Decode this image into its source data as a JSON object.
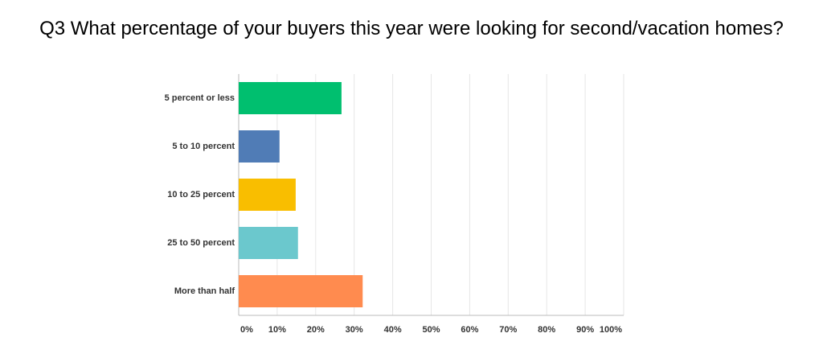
{
  "chart_data": {
    "type": "bar",
    "orientation": "horizontal",
    "title": "Q3 What percentage of your buyers this year were looking for second/vacation homes?",
    "categories": [
      "5 percent or less",
      "5 to 10 percent",
      "10 to 25 percent",
      "25 to 50 percent",
      "More than half"
    ],
    "values": [
      26.7,
      10.6,
      14.8,
      15.4,
      32.2
    ],
    "colors": [
      "#00bf6f",
      "#507cb6",
      "#f9be00",
      "#6bc8cd",
      "#ff8b4f"
    ],
    "xlim": [
      0,
      100
    ],
    "xticks": [
      {
        "value": 0,
        "label": "0%"
      },
      {
        "value": 10,
        "label": "10%"
      },
      {
        "value": 20,
        "label": "20%"
      },
      {
        "value": 30,
        "label": "30%"
      },
      {
        "value": 40,
        "label": "40%"
      },
      {
        "value": 50,
        "label": "50%"
      },
      {
        "value": 60,
        "label": "60%"
      },
      {
        "value": 70,
        "label": "70%"
      },
      {
        "value": 80,
        "label": "80%"
      },
      {
        "value": 90,
        "label": "90%"
      },
      {
        "value": 100,
        "label": "100%"
      }
    ],
    "grid": true
  }
}
